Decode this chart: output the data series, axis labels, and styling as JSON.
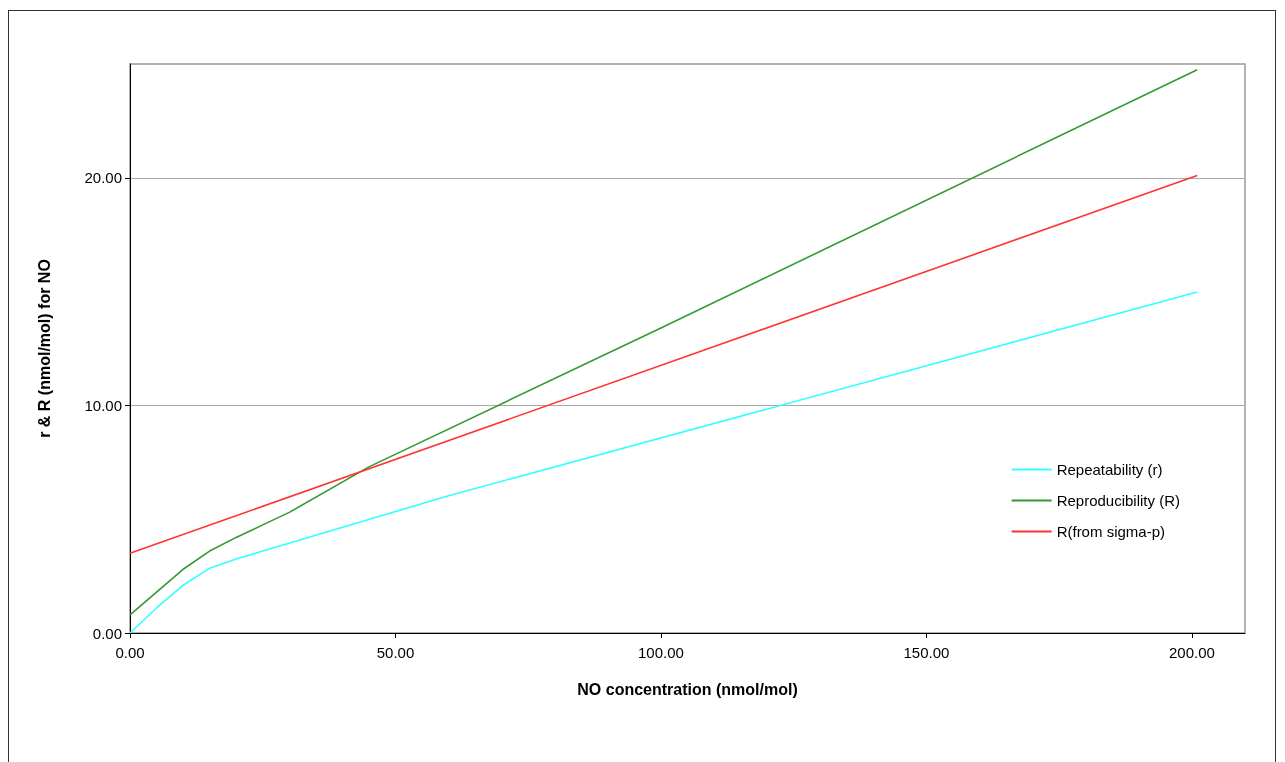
{
  "chart_data": {
    "type": "line",
    "xlabel": "NO concentration (nmol/mol)",
    "ylabel": "r & R (nmol/mol) for NO",
    "xlim": [
      0,
      210
    ],
    "ylim": [
      0,
      25
    ],
    "xticks": [
      {
        "value": 0,
        "label": "0.00"
      },
      {
        "value": 50,
        "label": "50.00"
      },
      {
        "value": 100,
        "label": "100.00"
      },
      {
        "value": 150,
        "label": "150.00"
      },
      {
        "value": 200,
        "label": "200.00"
      }
    ],
    "yticks": [
      {
        "value": 0,
        "label": "0.00"
      },
      {
        "value": 10,
        "label": "10.00"
      },
      {
        "value": 20,
        "label": "20.00"
      }
    ],
    "grid": "y",
    "legend": "bottom right",
    "marker": "none",
    "line_style": "solid",
    "series": [
      {
        "name": "Repeatability (r)",
        "color": "#33ffff",
        "x": [
          0,
          5,
          10,
          15,
          20,
          25,
          60,
          201
        ],
        "values": [
          0,
          1.1,
          2.1,
          2.85,
          3.25,
          3.6,
          6.03,
          14.98
        ]
      },
      {
        "name": "Reproducibility (R)",
        "color": "#339933",
        "x": [
          0,
          5,
          10,
          15,
          20,
          25,
          30,
          45,
          100,
          201
        ],
        "values": [
          0.8,
          1.8,
          2.8,
          3.6,
          4.2,
          4.75,
          5.3,
          7.3,
          13.4,
          24.75
        ]
      },
      {
        "name": "R(from sigma-p)",
        "color": "#ff3333",
        "x": [
          0,
          201
        ],
        "values": [
          3.5,
          20.1
        ]
      }
    ]
  }
}
